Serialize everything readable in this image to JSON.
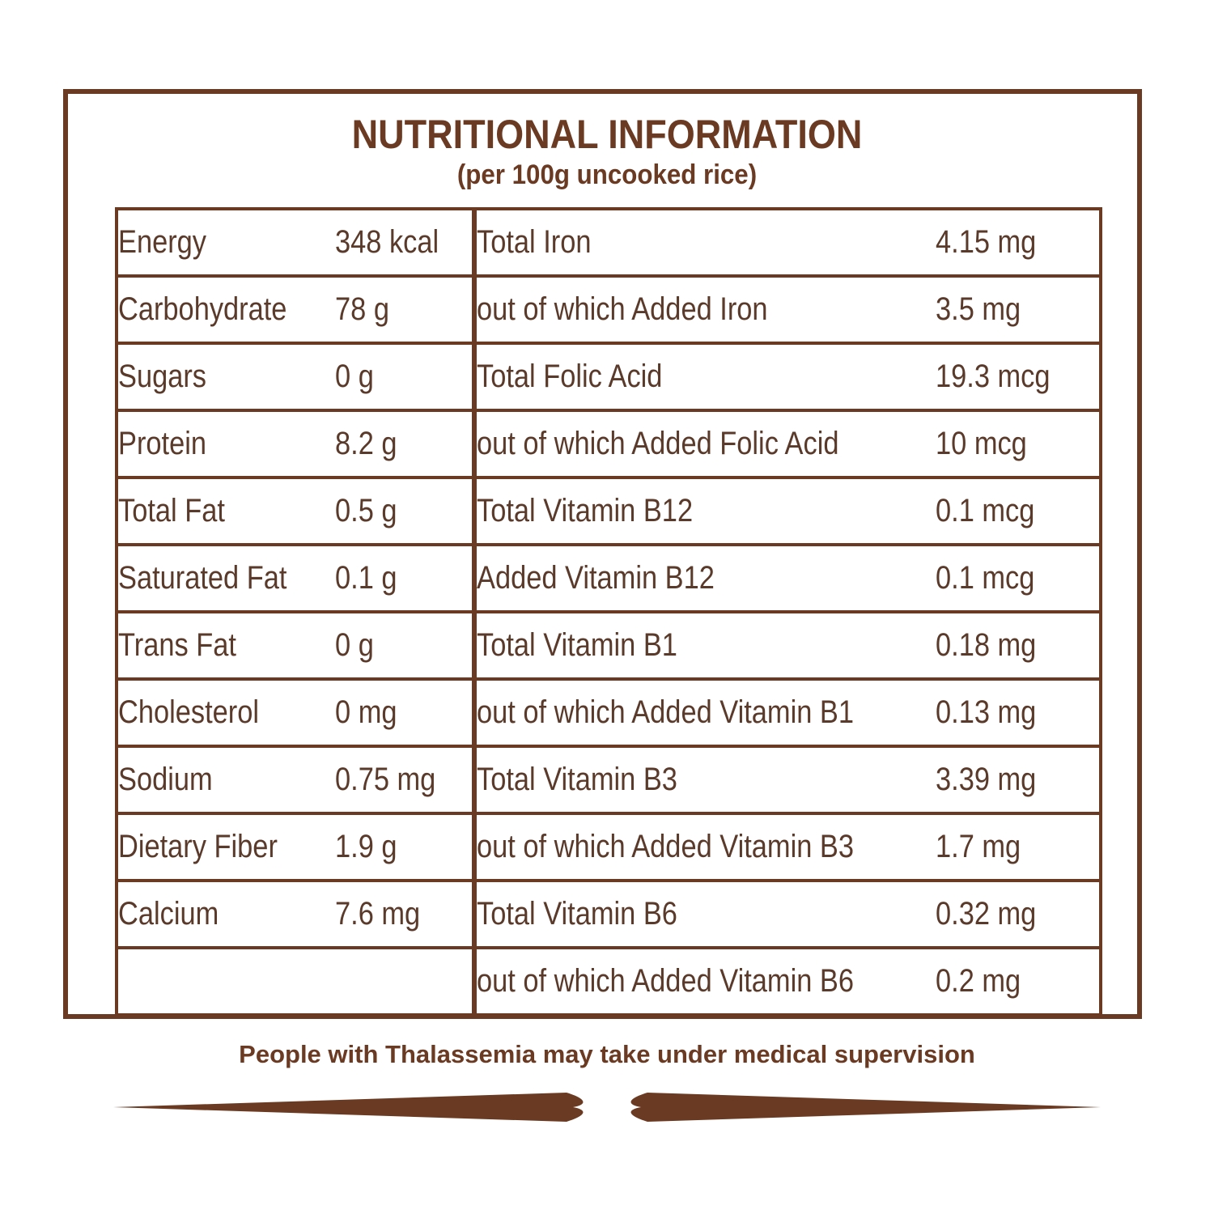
{
  "header": {
    "title": "NUTRITIONAL INFORMATION",
    "subtitle": "(per 100g uncooked rice)"
  },
  "table": {
    "rows": [
      {
        "left_name": "Energy",
        "left_value": "348 kcal",
        "right_name": "Total Iron",
        "right_value": "4.15 mg"
      },
      {
        "left_name": "Carbohydrate",
        "left_value": "78 g",
        "right_name": "out of which Added Iron",
        "right_value": "3.5 mg"
      },
      {
        "left_name": "Sugars",
        "left_value": "0 g",
        "right_name": "Total Folic Acid",
        "right_value": "19.3 mcg"
      },
      {
        "left_name": "Protein",
        "left_value": "8.2 g",
        "right_name": "out of which Added Folic Acid",
        "right_value": "10 mcg"
      },
      {
        "left_name": "Total Fat",
        "left_value": "0.5 g",
        "right_name": "Total Vitamin B12",
        "right_value": "0.1 mcg"
      },
      {
        "left_name": "Saturated Fat",
        "left_value": "0.1 g",
        "right_name": "Added Vitamin B12",
        "right_value": "0.1 mcg"
      },
      {
        "left_name": "Trans Fat",
        "left_value": "0 g",
        "right_name": "Total Vitamin B1",
        "right_value": "0.18 mg"
      },
      {
        "left_name": "Cholesterol",
        "left_value": "0 mg",
        "right_name": "out of which Added Vitamin B1",
        "right_value": "0.13 mg"
      },
      {
        "left_name": "Sodium",
        "left_value": "0.75 mg",
        "right_name": "Total Vitamin B3",
        "right_value": "3.39 mg"
      },
      {
        "left_name": "Dietary Fiber",
        "left_value": "1.9 g",
        "right_name": "out of which Added Vitamin B3",
        "right_value": "1.7 mg"
      },
      {
        "left_name": "Calcium",
        "left_value": "7.6 mg",
        "right_name": "Total Vitamin B6",
        "right_value": "0.32 mg"
      },
      {
        "left_name": "",
        "left_value": "",
        "right_name": "out of which Added Vitamin B6",
        "right_value": "0.2 mg"
      }
    ]
  },
  "footer": {
    "note": "People with Thalassemia may take under medical supervision"
  },
  "colors": {
    "border": "#6b3a22",
    "text": "#5a3a2a",
    "divider": "#6b3a22"
  }
}
